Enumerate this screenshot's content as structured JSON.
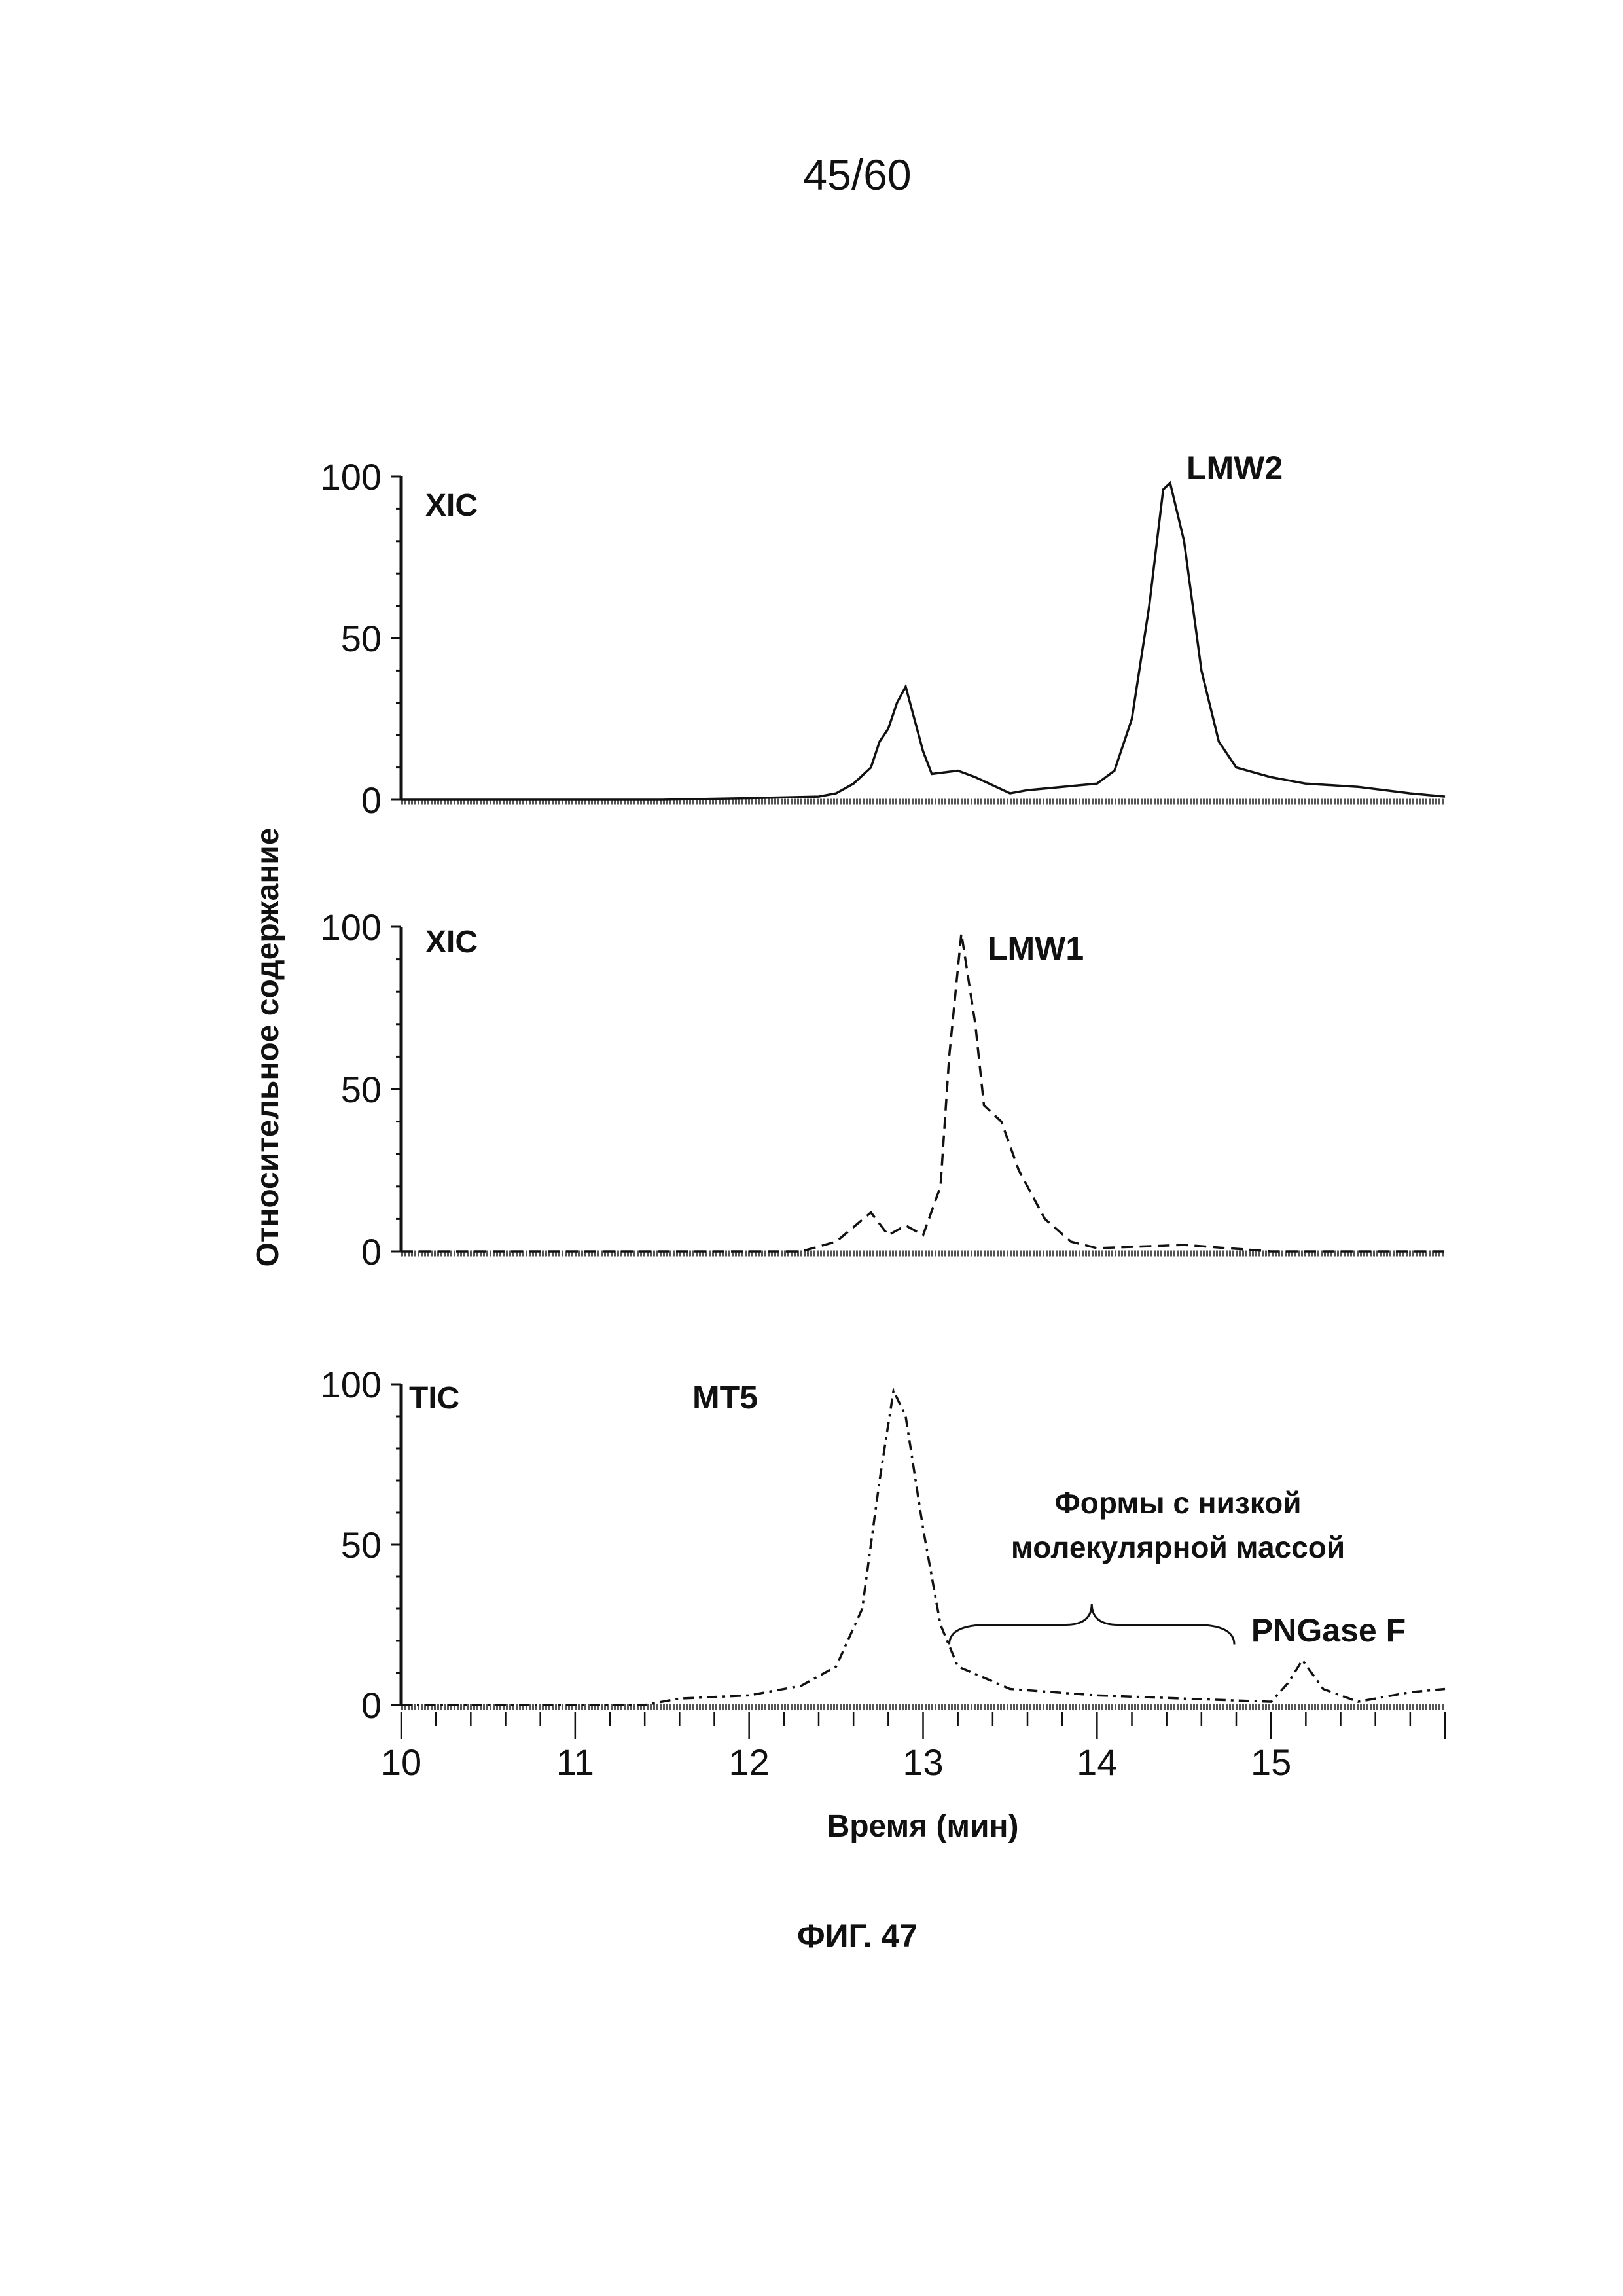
{
  "page_number": "45/60",
  "figure_caption": "ФИГ. 47",
  "chart_data": [
    {
      "type": "line",
      "panel": "top",
      "trace_label": "XIC",
      "peak_labels": [
        {
          "text": "LMW2",
          "x": 14.42
        }
      ],
      "line_style": "solid",
      "xlim": [
        10,
        16
      ],
      "ylim": [
        0,
        100
      ],
      "yticks": [
        0,
        50,
        100
      ],
      "points": [
        [
          10,
          0
        ],
        [
          11.5,
          0
        ],
        [
          12,
          0.5
        ],
        [
          12.4,
          1
        ],
        [
          12.5,
          2
        ],
        [
          12.6,
          5
        ],
        [
          12.7,
          10
        ],
        [
          12.75,
          18
        ],
        [
          12.8,
          22
        ],
        [
          12.85,
          30
        ],
        [
          12.9,
          35
        ],
        [
          12.95,
          25
        ],
        [
          13,
          15
        ],
        [
          13.05,
          8
        ],
        [
          13.2,
          9
        ],
        [
          13.3,
          7
        ],
        [
          13.5,
          2
        ],
        [
          13.6,
          3
        ],
        [
          13.8,
          4
        ],
        [
          14,
          5
        ],
        [
          14.1,
          9
        ],
        [
          14.2,
          25
        ],
        [
          14.3,
          60
        ],
        [
          14.38,
          96
        ],
        [
          14.42,
          98
        ],
        [
          14.5,
          80
        ],
        [
          14.6,
          40
        ],
        [
          14.7,
          18
        ],
        [
          14.8,
          10
        ],
        [
          15,
          7
        ],
        [
          15.2,
          5
        ],
        [
          15.5,
          4
        ],
        [
          15.8,
          2
        ],
        [
          16,
          1
        ]
      ]
    },
    {
      "type": "line",
      "panel": "middle",
      "trace_label": "XIC",
      "peak_labels": [
        {
          "text": "LMW1",
          "x": 13.22
        }
      ],
      "line_style": "dashed",
      "xlim": [
        10,
        16
      ],
      "ylim": [
        0,
        100
      ],
      "yticks": [
        0,
        50,
        100
      ],
      "points": [
        [
          10,
          0
        ],
        [
          12.3,
          0
        ],
        [
          12.5,
          3
        ],
        [
          12.7,
          12
        ],
        [
          12.8,
          5
        ],
        [
          12.9,
          8
        ],
        [
          13,
          5
        ],
        [
          13.1,
          20
        ],
        [
          13.15,
          60
        ],
        [
          13.22,
          98
        ],
        [
          13.3,
          70
        ],
        [
          13.35,
          45
        ],
        [
          13.45,
          40
        ],
        [
          13.55,
          25
        ],
        [
          13.7,
          10
        ],
        [
          13.85,
          3
        ],
        [
          14,
          1
        ],
        [
          14.5,
          2
        ],
        [
          15,
          0
        ],
        [
          16,
          0
        ]
      ]
    },
    {
      "type": "line",
      "panel": "bottom",
      "trace_label": "TIC",
      "peak_labels": [
        {
          "text": "MT5",
          "x": 12.83
        },
        {
          "text": "PNGase F",
          "x": 15.18
        }
      ],
      "annotation": [
        "Формы с низкой",
        "молекулярной массой"
      ],
      "annotation_range": [
        13.0,
        14.8
      ],
      "line_style": "dash-dot",
      "xlim": [
        10,
        16
      ],
      "ylim": [
        0,
        100
      ],
      "yticks": [
        0,
        50,
        100
      ],
      "xticks": [
        10,
        11,
        12,
        13,
        14,
        15
      ],
      "points": [
        [
          10,
          0
        ],
        [
          11.4,
          0
        ],
        [
          11.6,
          2
        ],
        [
          12,
          3
        ],
        [
          12.3,
          6
        ],
        [
          12.5,
          12
        ],
        [
          12.65,
          30
        ],
        [
          12.75,
          70
        ],
        [
          12.83,
          98
        ],
        [
          12.9,
          90
        ],
        [
          13,
          55
        ],
        [
          13.1,
          25
        ],
        [
          13.2,
          12
        ],
        [
          13.5,
          5
        ],
        [
          14,
          3
        ],
        [
          14.5,
          2
        ],
        [
          15,
          1
        ],
        [
          15.1,
          7
        ],
        [
          15.18,
          14
        ],
        [
          15.3,
          5
        ],
        [
          15.5,
          1
        ],
        [
          15.8,
          4
        ],
        [
          16,
          5
        ]
      ]
    }
  ],
  "xlabel": "Время (мин)",
  "ylabel": "Относительное содержание"
}
